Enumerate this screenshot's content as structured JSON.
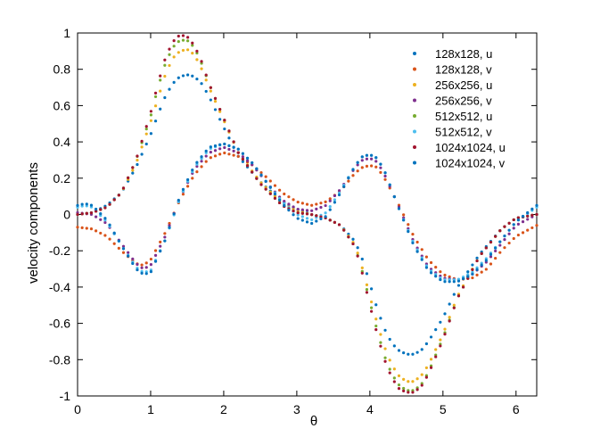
{
  "chart_data": {
    "type": "scatter",
    "title": "",
    "xlabel": "θ",
    "ylabel": "velocity components",
    "xlim": [
      0,
      6.2832
    ],
    "ylim": [
      -1,
      1
    ],
    "xticks": [
      0,
      1,
      2,
      3,
      4,
      5,
      6
    ],
    "yticks": [
      -1,
      -0.8,
      -0.6,
      -0.4,
      -0.2,
      0,
      0.2,
      0.4,
      0.6,
      0.8,
      1
    ],
    "xtick_labels": [
      "0",
      "1",
      "2",
      "3",
      "4",
      "5",
      "6"
    ],
    "ytick_labels": [
      "-1",
      "-0.8",
      "-0.6",
      "-0.4",
      "-0.2",
      "0",
      "0.2",
      "0.4",
      "0.6",
      "0.8",
      "1"
    ],
    "grid": false,
    "legend_position": "top-right",
    "series": [
      {
        "name": "128x128, u",
        "color": "#0072bd",
        "x": [
          0,
          0.2,
          0.4,
          0.6,
          0.8,
          1.0,
          1.1,
          1.2,
          1.3,
          1.4,
          1.5,
          1.6,
          1.7,
          1.8,
          2.0,
          2.2,
          2.5,
          2.8,
          3.0,
          3.2,
          3.4,
          3.6,
          3.8,
          3.9,
          4.0,
          4.1,
          4.2,
          4.3,
          4.4,
          4.5,
          4.6,
          4.7,
          4.8,
          5.0,
          5.2,
          5.5,
          5.8,
          6.0,
          6.2832
        ],
        "y": [
          0,
          0.01,
          0.05,
          0.12,
          0.26,
          0.44,
          0.55,
          0.65,
          0.72,
          0.76,
          0.77,
          0.76,
          0.72,
          0.65,
          0.48,
          0.32,
          0.18,
          0.07,
          0.03,
          0.0,
          -0.02,
          -0.06,
          -0.15,
          -0.25,
          -0.38,
          -0.52,
          -0.63,
          -0.71,
          -0.75,
          -0.77,
          -0.77,
          -0.75,
          -0.7,
          -0.57,
          -0.4,
          -0.22,
          -0.08,
          -0.02,
          0
        ]
      },
      {
        "name": "128x128, v",
        "color": "#d95319",
        "x": [
          0,
          0.2,
          0.4,
          0.6,
          0.8,
          0.9,
          1.0,
          1.2,
          1.4,
          1.6,
          1.8,
          2.0,
          2.2,
          2.4,
          2.6,
          2.8,
          3.0,
          3.2,
          3.4,
          3.6,
          3.8,
          3.9,
          4.0,
          4.1,
          4.2,
          4.4,
          4.6,
          4.8,
          5.0,
          5.2,
          5.4,
          5.6,
          5.8,
          6.0,
          6.2832
        ],
        "y": [
          -0.07,
          -0.08,
          -0.12,
          -0.2,
          -0.27,
          -0.28,
          -0.25,
          -0.1,
          0.08,
          0.22,
          0.31,
          0.34,
          0.32,
          0.27,
          0.2,
          0.12,
          0.07,
          0.05,
          0.07,
          0.13,
          0.23,
          0.26,
          0.27,
          0.26,
          0.2,
          0.05,
          -0.12,
          -0.25,
          -0.33,
          -0.36,
          -0.35,
          -0.3,
          -0.2,
          -0.12,
          -0.06
        ]
      },
      {
        "name": "256x256, u",
        "color": "#edb120",
        "x": [
          0,
          0.2,
          0.4,
          0.6,
          0.8,
          1.0,
          1.1,
          1.2,
          1.3,
          1.4,
          1.5,
          1.6,
          1.7,
          1.8,
          2.0,
          2.2,
          2.5,
          2.8,
          3.0,
          3.2,
          3.4,
          3.6,
          3.8,
          3.9,
          4.0,
          4.1,
          4.2,
          4.3,
          4.4,
          4.5,
          4.6,
          4.7,
          4.8,
          5.0,
          5.2,
          5.5,
          5.8,
          6.0,
          6.2832
        ],
        "y": [
          0,
          0.01,
          0.04,
          0.12,
          0.28,
          0.51,
          0.64,
          0.77,
          0.86,
          0.9,
          0.91,
          0.88,
          0.8,
          0.7,
          0.52,
          0.34,
          0.18,
          0.06,
          0.02,
          0.0,
          -0.02,
          -0.06,
          -0.17,
          -0.3,
          -0.45,
          -0.6,
          -0.73,
          -0.83,
          -0.89,
          -0.92,
          -0.92,
          -0.89,
          -0.83,
          -0.66,
          -0.45,
          -0.23,
          -0.08,
          -0.02,
          0
        ]
      },
      {
        "name": "256x256, v",
        "color": "#7e2f8e",
        "x": [
          0,
          0.2,
          0.4,
          0.6,
          0.8,
          0.9,
          1.0,
          1.2,
          1.4,
          1.6,
          1.8,
          2.0,
          2.2,
          2.4,
          2.6,
          2.8,
          3.0,
          3.2,
          3.4,
          3.6,
          3.8,
          3.9,
          4.0,
          4.1,
          4.2,
          4.4,
          4.6,
          4.8,
          5.0,
          5.2,
          5.4,
          5.6,
          5.8,
          6.0,
          6.2832
        ],
        "y": [
          0.01,
          0.0,
          -0.05,
          -0.16,
          -0.27,
          -0.3,
          -0.28,
          -0.12,
          0.09,
          0.25,
          0.34,
          0.37,
          0.34,
          0.27,
          0.17,
          0.08,
          0.03,
          0.02,
          0.05,
          0.14,
          0.26,
          0.3,
          0.31,
          0.29,
          0.22,
          0.04,
          -0.15,
          -0.29,
          -0.35,
          -0.36,
          -0.33,
          -0.26,
          -0.16,
          -0.06,
          0.0
        ]
      },
      {
        "name": "512x512, u",
        "color": "#77ac30",
        "x": [
          0,
          0.2,
          0.4,
          0.6,
          0.8,
          1.0,
          1.1,
          1.2,
          1.3,
          1.4,
          1.5,
          1.6,
          1.7,
          1.8,
          2.0,
          2.2,
          2.5,
          2.8,
          3.0,
          3.2,
          3.4,
          3.6,
          3.8,
          3.9,
          4.0,
          4.1,
          4.2,
          4.3,
          4.4,
          4.5,
          4.6,
          4.7,
          4.8,
          5.0,
          5.2,
          5.5,
          5.8,
          6.0,
          6.2832
        ],
        "y": [
          0,
          0.01,
          0.04,
          0.12,
          0.3,
          0.54,
          0.7,
          0.83,
          0.92,
          0.96,
          0.96,
          0.92,
          0.83,
          0.72,
          0.53,
          0.34,
          0.17,
          0.05,
          0.01,
          0.0,
          -0.02,
          -0.06,
          -0.18,
          -0.32,
          -0.48,
          -0.64,
          -0.78,
          -0.88,
          -0.94,
          -0.97,
          -0.97,
          -0.94,
          -0.87,
          -0.68,
          -0.46,
          -0.23,
          -0.08,
          -0.02,
          0
        ]
      },
      {
        "name": "512x512, v",
        "color": "#4dbeee",
        "x": [
          0,
          0.1,
          0.2,
          0.4,
          0.6,
          0.8,
          0.9,
          1.0,
          1.2,
          1.4,
          1.6,
          1.8,
          2.0,
          2.2,
          2.4,
          2.6,
          2.8,
          3.0,
          3.2,
          3.4,
          3.6,
          3.8,
          3.9,
          4.0,
          4.1,
          4.2,
          4.4,
          4.6,
          4.8,
          5.0,
          5.2,
          5.4,
          5.6,
          5.8,
          6.0,
          6.2832
        ],
        "y": [
          0.04,
          0.05,
          0.04,
          -0.04,
          -0.17,
          -0.29,
          -0.32,
          -0.31,
          -0.14,
          0.09,
          0.26,
          0.36,
          0.39,
          0.36,
          0.28,
          0.17,
          0.07,
          0.0,
          -0.03,
          0.01,
          0.13,
          0.27,
          0.32,
          0.33,
          0.31,
          0.24,
          0.03,
          -0.16,
          -0.3,
          -0.36,
          -0.36,
          -0.32,
          -0.24,
          -0.14,
          -0.04,
          0.04
        ]
      },
      {
        "name": "1024x1024, u",
        "color": "#a2142f",
        "x": [
          0,
          0.2,
          0.4,
          0.6,
          0.8,
          1.0,
          1.1,
          1.2,
          1.3,
          1.4,
          1.5,
          1.6,
          1.7,
          1.8,
          2.0,
          2.2,
          2.5,
          2.8,
          3.0,
          3.2,
          3.4,
          3.6,
          3.8,
          3.9,
          4.0,
          4.1,
          4.2,
          4.3,
          4.4,
          4.5,
          4.6,
          4.7,
          4.8,
          5.0,
          5.2,
          5.5,
          5.8,
          6.0,
          6.2832
        ],
        "y": [
          0,
          0.01,
          0.04,
          0.12,
          0.3,
          0.56,
          0.72,
          0.86,
          0.95,
          0.99,
          0.98,
          0.93,
          0.84,
          0.72,
          0.53,
          0.34,
          0.17,
          0.05,
          0.01,
          0.0,
          -0.02,
          -0.06,
          -0.18,
          -0.33,
          -0.5,
          -0.66,
          -0.8,
          -0.9,
          -0.96,
          -0.98,
          -0.98,
          -0.95,
          -0.88,
          -0.69,
          -0.46,
          -0.23,
          -0.08,
          -0.02,
          0
        ]
      },
      {
        "name": "1024x1024, v",
        "color": "#0072bd",
        "x": [
          0,
          0.1,
          0.2,
          0.4,
          0.6,
          0.8,
          0.9,
          1.0,
          1.2,
          1.4,
          1.6,
          1.8,
          2.0,
          2.2,
          2.4,
          2.6,
          2.8,
          3.0,
          3.2,
          3.4,
          3.6,
          3.8,
          3.9,
          4.0,
          4.1,
          4.2,
          4.4,
          4.6,
          4.8,
          5.0,
          5.2,
          5.4,
          5.6,
          5.8,
          6.0,
          6.2832
        ],
        "y": [
          0.05,
          0.06,
          0.05,
          -0.03,
          -0.17,
          -0.3,
          -0.33,
          -0.32,
          -0.14,
          0.1,
          0.27,
          0.37,
          0.39,
          0.36,
          0.28,
          0.17,
          0.06,
          -0.02,
          -0.05,
          -0.01,
          0.12,
          0.27,
          0.32,
          0.33,
          0.31,
          0.24,
          0.03,
          -0.17,
          -0.31,
          -0.37,
          -0.37,
          -0.33,
          -0.25,
          -0.14,
          -0.04,
          0.05
        ]
      }
    ]
  }
}
